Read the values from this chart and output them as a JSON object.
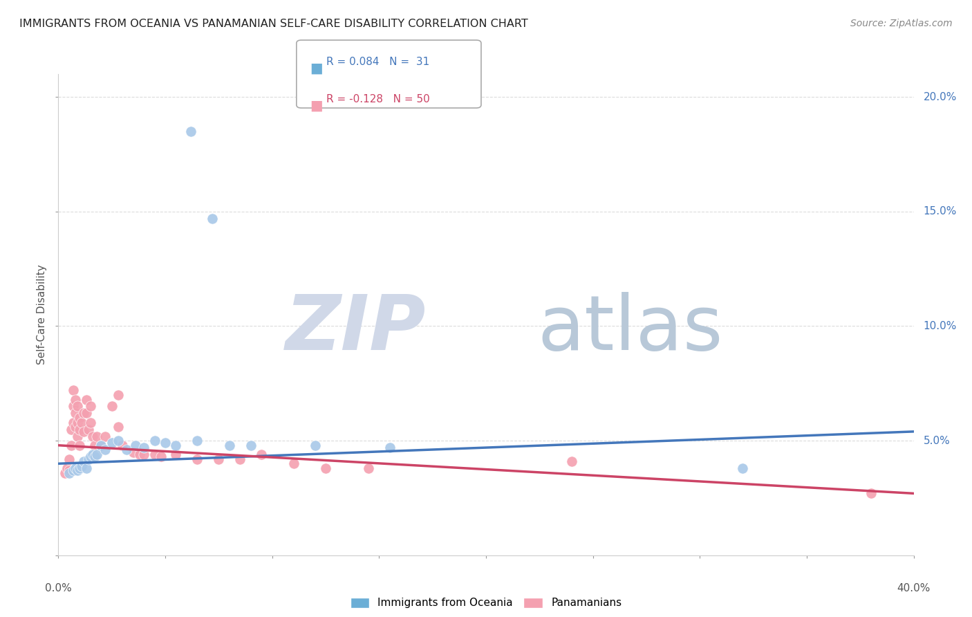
{
  "title": "IMMIGRANTS FROM OCEANIA VS PANAMANIAN SELF-CARE DISABILITY CORRELATION CHART",
  "source": "Source: ZipAtlas.com",
  "ylabel": "Self-Care Disability",
  "xlim": [
    0.0,
    0.4
  ],
  "ylim": [
    0.0,
    0.21
  ],
  "right_yticks": [
    0.0,
    0.05,
    0.1,
    0.15,
    0.2
  ],
  "right_ytick_labels": [
    "",
    "5.0%",
    "10.0%",
    "15.0%",
    "20.0%"
  ],
  "blue_scatter": [
    [
      0.005,
      0.036
    ],
    [
      0.007,
      0.037
    ],
    [
      0.008,
      0.038
    ],
    [
      0.009,
      0.037
    ],
    [
      0.01,
      0.038
    ],
    [
      0.011,
      0.039
    ],
    [
      0.012,
      0.041
    ],
    [
      0.013,
      0.038
    ],
    [
      0.014,
      0.042
    ],
    [
      0.015,
      0.043
    ],
    [
      0.016,
      0.044
    ],
    [
      0.017,
      0.043
    ],
    [
      0.018,
      0.044
    ],
    [
      0.02,
      0.048
    ],
    [
      0.022,
      0.046
    ],
    [
      0.025,
      0.049
    ],
    [
      0.028,
      0.05
    ],
    [
      0.032,
      0.046
    ],
    [
      0.036,
      0.048
    ],
    [
      0.04,
      0.047
    ],
    [
      0.045,
      0.05
    ],
    [
      0.05,
      0.049
    ],
    [
      0.055,
      0.048
    ],
    [
      0.065,
      0.05
    ],
    [
      0.08,
      0.048
    ],
    [
      0.09,
      0.048
    ],
    [
      0.12,
      0.048
    ],
    [
      0.155,
      0.047
    ],
    [
      0.062,
      0.185
    ],
    [
      0.072,
      0.147
    ],
    [
      0.32,
      0.038
    ]
  ],
  "pink_scatter": [
    [
      0.003,
      0.036
    ],
    [
      0.004,
      0.038
    ],
    [
      0.005,
      0.037
    ],
    [
      0.005,
      0.042
    ],
    [
      0.006,
      0.048
    ],
    [
      0.006,
      0.055
    ],
    [
      0.007,
      0.058
    ],
    [
      0.007,
      0.065
    ],
    [
      0.007,
      0.072
    ],
    [
      0.008,
      0.068
    ],
    [
      0.008,
      0.062
    ],
    [
      0.008,
      0.056
    ],
    [
      0.009,
      0.058
    ],
    [
      0.009,
      0.065
    ],
    [
      0.009,
      0.052
    ],
    [
      0.01,
      0.06
    ],
    [
      0.01,
      0.055
    ],
    [
      0.01,
      0.048
    ],
    [
      0.011,
      0.058
    ],
    [
      0.012,
      0.062
    ],
    [
      0.012,
      0.054
    ],
    [
      0.013,
      0.068
    ],
    [
      0.013,
      0.062
    ],
    [
      0.014,
      0.055
    ],
    [
      0.015,
      0.065
    ],
    [
      0.015,
      0.058
    ],
    [
      0.016,
      0.052
    ],
    [
      0.017,
      0.048
    ],
    [
      0.018,
      0.052
    ],
    [
      0.02,
      0.048
    ],
    [
      0.022,
      0.052
    ],
    [
      0.025,
      0.065
    ],
    [
      0.028,
      0.07
    ],
    [
      0.028,
      0.056
    ],
    [
      0.03,
      0.048
    ],
    [
      0.035,
      0.045
    ],
    [
      0.038,
      0.044
    ],
    [
      0.04,
      0.044
    ],
    [
      0.045,
      0.044
    ],
    [
      0.048,
      0.043
    ],
    [
      0.055,
      0.044
    ],
    [
      0.065,
      0.042
    ],
    [
      0.075,
      0.042
    ],
    [
      0.085,
      0.042
    ],
    [
      0.095,
      0.044
    ],
    [
      0.11,
      0.04
    ],
    [
      0.125,
      0.038
    ],
    [
      0.145,
      0.038
    ],
    [
      0.24,
      0.041
    ],
    [
      0.38,
      0.027
    ]
  ],
  "blue_line_x": [
    0.0,
    0.4
  ],
  "blue_line_y": [
    0.04,
    0.054
  ],
  "pink_line_x": [
    0.0,
    0.4
  ],
  "pink_line_y": [
    0.048,
    0.027
  ],
  "blue_color": "#a8c8e8",
  "pink_color": "#f4a0b0",
  "blue_line_color": "#4477bb",
  "pink_line_color": "#cc4466",
  "blue_legend_color": "#6baed6",
  "pink_legend_color": "#f4a0b0",
  "background_color": "#ffffff",
  "grid_color": "#cccccc",
  "legend_r1": "R = 0.084   N =  31",
  "legend_r2": "R = -0.128   N = 50",
  "legend_label1": "Immigrants from Oceania",
  "legend_label2": "Panamanians",
  "watermark_zip": "ZIP",
  "watermark_atlas": "atlas"
}
